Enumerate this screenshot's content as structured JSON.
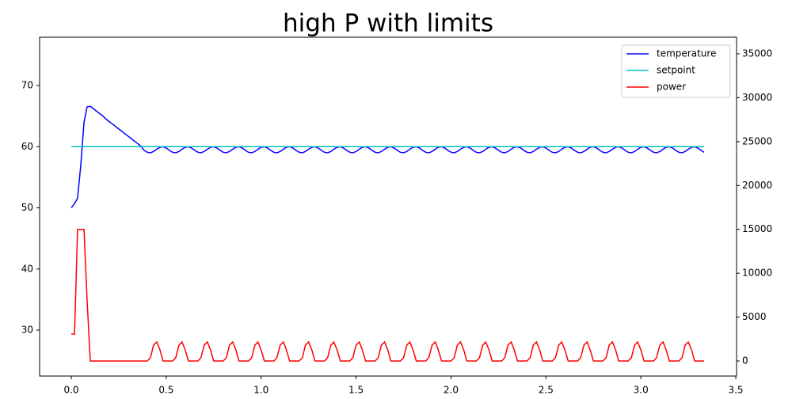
{
  "chart_data": {
    "type": "line",
    "title": "high P with limits",
    "x": [
      0,
      0.017,
      0.033,
      0.05,
      0.067,
      0.083,
      0.1,
      0.117,
      0.133,
      0.15,
      0.167,
      0.183,
      0.2,
      0.217,
      0.233,
      0.25,
      0.267,
      0.283,
      0.3,
      0.317,
      0.333,
      0.35,
      0.367,
      0.383,
      0.4,
      0.417,
      0.433,
      0.45,
      0.467,
      0.483,
      0.5,
      0.517,
      0.533,
      0.55,
      0.567,
      0.583,
      0.6,
      0.617,
      0.633,
      0.65,
      0.667,
      0.683,
      0.7,
      0.717,
      0.733,
      0.75,
      0.767,
      0.783,
      0.8,
      0.817,
      0.833,
      0.85,
      0.867,
      0.883,
      0.9,
      0.917,
      0.933,
      0.95,
      0.967,
      0.983,
      1,
      1.017,
      1.033,
      1.05,
      1.067,
      1.083,
      1.1,
      1.117,
      1.133,
      1.15,
      1.167,
      1.183,
      1.2,
      1.217,
      1.233,
      1.25,
      1.267,
      1.283,
      1.3,
      1.317,
      1.333,
      1.35,
      1.367,
      1.383,
      1.4,
      1.417,
      1.433,
      1.45,
      1.467,
      1.483,
      1.5,
      1.517,
      1.533,
      1.55,
      1.567,
      1.583,
      1.6,
      1.617,
      1.633,
      1.65,
      1.667,
      1.683,
      1.7,
      1.717,
      1.733,
      1.75,
      1.767,
      1.783,
      1.8,
      1.817,
      1.833,
      1.85,
      1.867,
      1.883,
      1.9,
      1.917,
      1.933,
      1.95,
      1.967,
      1.983,
      2,
      2.017,
      2.033,
      2.05,
      2.067,
      2.083,
      2.1,
      2.117,
      2.133,
      2.15,
      2.167,
      2.183,
      2.2,
      2.217,
      2.233,
      2.25,
      2.267,
      2.283,
      2.3,
      2.317,
      2.333,
      2.35,
      2.367,
      2.383,
      2.4,
      2.417,
      2.433,
      2.45,
      2.467,
      2.483,
      2.5,
      2.517,
      2.533,
      2.55,
      2.567,
      2.583,
      2.6,
      2.617,
      2.633,
      2.65,
      2.667,
      2.683,
      2.7,
      2.717,
      2.733,
      2.75,
      2.767,
      2.783,
      2.8,
      2.817,
      2.833,
      2.85,
      2.867,
      2.883,
      2.9,
      2.917,
      2.933,
      2.95,
      2.967,
      2.983,
      3,
      3.017,
      3.033,
      3.05,
      3.067,
      3.083,
      3.1,
      3.117,
      3.133,
      3.15,
      3.167,
      3.183,
      3.2,
      3.217,
      3.233,
      3.25,
      3.267,
      3.283,
      3.3,
      3.317,
      3.333
    ],
    "series": [
      {
        "name": "temperature",
        "color": "#0000ff",
        "values": [
          50,
          50.7,
          51.6,
          57,
          64,
          66.5,
          66.6,
          66.2,
          65.8,
          65.4,
          65.0,
          64.5,
          64.1,
          63.7,
          63.3,
          62.9,
          62.5,
          62.1,
          61.7,
          61.3,
          60.9,
          60.5,
          60.1,
          59.41,
          59.09,
          59.01,
          59.21,
          59.59,
          59.91,
          59.99,
          59.79,
          59.41,
          59.09,
          59.01,
          59.21,
          59.59,
          59.91,
          59.99,
          59.79,
          59.41,
          59.09,
          59.01,
          59.21,
          59.59,
          59.91,
          59.99,
          59.79,
          59.41,
          59.09,
          59.01,
          59.21,
          59.59,
          59.91,
          59.99,
          59.79,
          59.41,
          59.09,
          59.01,
          59.21,
          59.59,
          59.91,
          59.99,
          59.79,
          59.41,
          59.09,
          59.01,
          59.21,
          59.59,
          59.91,
          59.99,
          59.79,
          59.41,
          59.09,
          59.01,
          59.21,
          59.59,
          59.91,
          59.99,
          59.79,
          59.41,
          59.09,
          59.01,
          59.21,
          59.59,
          59.91,
          59.99,
          59.79,
          59.41,
          59.09,
          59.01,
          59.21,
          59.59,
          59.91,
          59.99,
          59.79,
          59.41,
          59.09,
          59.01,
          59.21,
          59.59,
          59.91,
          59.99,
          59.79,
          59.41,
          59.09,
          59.01,
          59.21,
          59.59,
          59.91,
          59.99,
          59.79,
          59.41,
          59.09,
          59.01,
          59.21,
          59.59,
          59.91,
          59.99,
          59.79,
          59.41,
          59.09,
          59.01,
          59.21,
          59.59,
          59.91,
          59.99,
          59.79,
          59.41,
          59.09,
          59.01,
          59.21,
          59.59,
          59.91,
          59.99,
          59.79,
          59.41,
          59.09,
          59.01,
          59.21,
          59.59,
          59.91,
          59.99,
          59.79,
          59.41,
          59.09,
          59.01,
          59.21,
          59.59,
          59.91,
          59.99,
          59.79,
          59.41,
          59.09,
          59.01,
          59.21,
          59.59,
          59.91,
          59.99,
          59.79,
          59.41,
          59.09,
          59.01,
          59.21,
          59.59,
          59.91,
          59.99,
          59.79,
          59.41,
          59.09,
          59.01,
          59.21,
          59.59,
          59.91,
          59.99,
          59.79,
          59.41,
          59.09,
          59.01,
          59.21,
          59.59,
          59.91,
          59.99,
          59.79,
          59.41,
          59.09,
          59.01,
          59.21,
          59.59,
          59.91,
          59.99,
          59.79,
          59.41,
          59.09,
          59.01,
          59.21,
          59.59,
          59.91,
          59.99,
          59.79,
          59.41,
          59.09
        ]
      },
      {
        "name": "setpoint",
        "color": "#00bfbf",
        "x": [
          0,
          3.333
        ],
        "values": [
          60,
          60
        ]
      },
      {
        "name": "power",
        "color": "#ff0000",
        "axis": "y2",
        "values": [
          3070,
          3070,
          15000,
          15000,
          15000,
          7000,
          0,
          0,
          0,
          0,
          0,
          0,
          0,
          0,
          0,
          0,
          0,
          0,
          0,
          0,
          0,
          0,
          0,
          0,
          0,
          378,
          1800,
          2167,
          1265,
          0,
          0,
          0,
          0,
          378,
          1800,
          2167,
          1265,
          0,
          0,
          0,
          0,
          378,
          1800,
          2167,
          1265,
          0,
          0,
          0,
          0,
          378,
          1800,
          2167,
          1265,
          0,
          0,
          0,
          0,
          378,
          1800,
          2167,
          1265,
          0,
          0,
          0,
          0,
          378,
          1800,
          2167,
          1265,
          0,
          0,
          0,
          0,
          378,
          1800,
          2167,
          1265,
          0,
          0,
          0,
          0,
          378,
          1800,
          2167,
          1265,
          0,
          0,
          0,
          0,
          378,
          1800,
          2167,
          1265,
          0,
          0,
          0,
          0,
          378,
          1800,
          2167,
          1265,
          0,
          0,
          0,
          0,
          378,
          1800,
          2167,
          1265,
          0,
          0,
          0,
          0,
          378,
          1800,
          2167,
          1265,
          0,
          0,
          0,
          0,
          378,
          1800,
          2167,
          1265,
          0,
          0,
          0,
          0,
          378,
          1800,
          2167,
          1265,
          0,
          0,
          0,
          0,
          378,
          1800,
          2167,
          1265,
          0,
          0,
          0,
          0,
          378,
          1800,
          2167,
          1265,
          0,
          0,
          0,
          0,
          378,
          1800,
          2167,
          1265,
          0,
          0,
          0,
          0,
          378,
          1800,
          2167,
          1265,
          0,
          0,
          0,
          0,
          378,
          1800,
          2167,
          1265,
          0,
          0,
          0,
          0,
          378,
          1800,
          2167,
          1265,
          0,
          0,
          0,
          0,
          378,
          1800,
          2167,
          1265,
          0,
          0,
          0,
          0,
          378,
          1800,
          2167,
          1265,
          0,
          0,
          0,
          0
        ]
      }
    ],
    "xlim": [
      -0.167,
      3.504
    ],
    "xticks": [
      {
        "value": 0,
        "label": "0.0"
      },
      0.5,
      {
        "value": 1,
        "label": "1.0"
      },
      1.5,
      {
        "value": 2,
        "label": "2.0"
      },
      2.5,
      {
        "value": 3,
        "label": "3.0"
      },
      3.5
    ],
    "ylim": [
      22.5,
      77.9
    ],
    "yticks": [
      30,
      40,
      50,
      60,
      70
    ],
    "y2lim": [
      -1714,
      36895
    ],
    "y2ticks": [
      0,
      5000,
      10000,
      15000,
      20000,
      25000,
      30000,
      35000
    ],
    "legend": "upper right"
  }
}
